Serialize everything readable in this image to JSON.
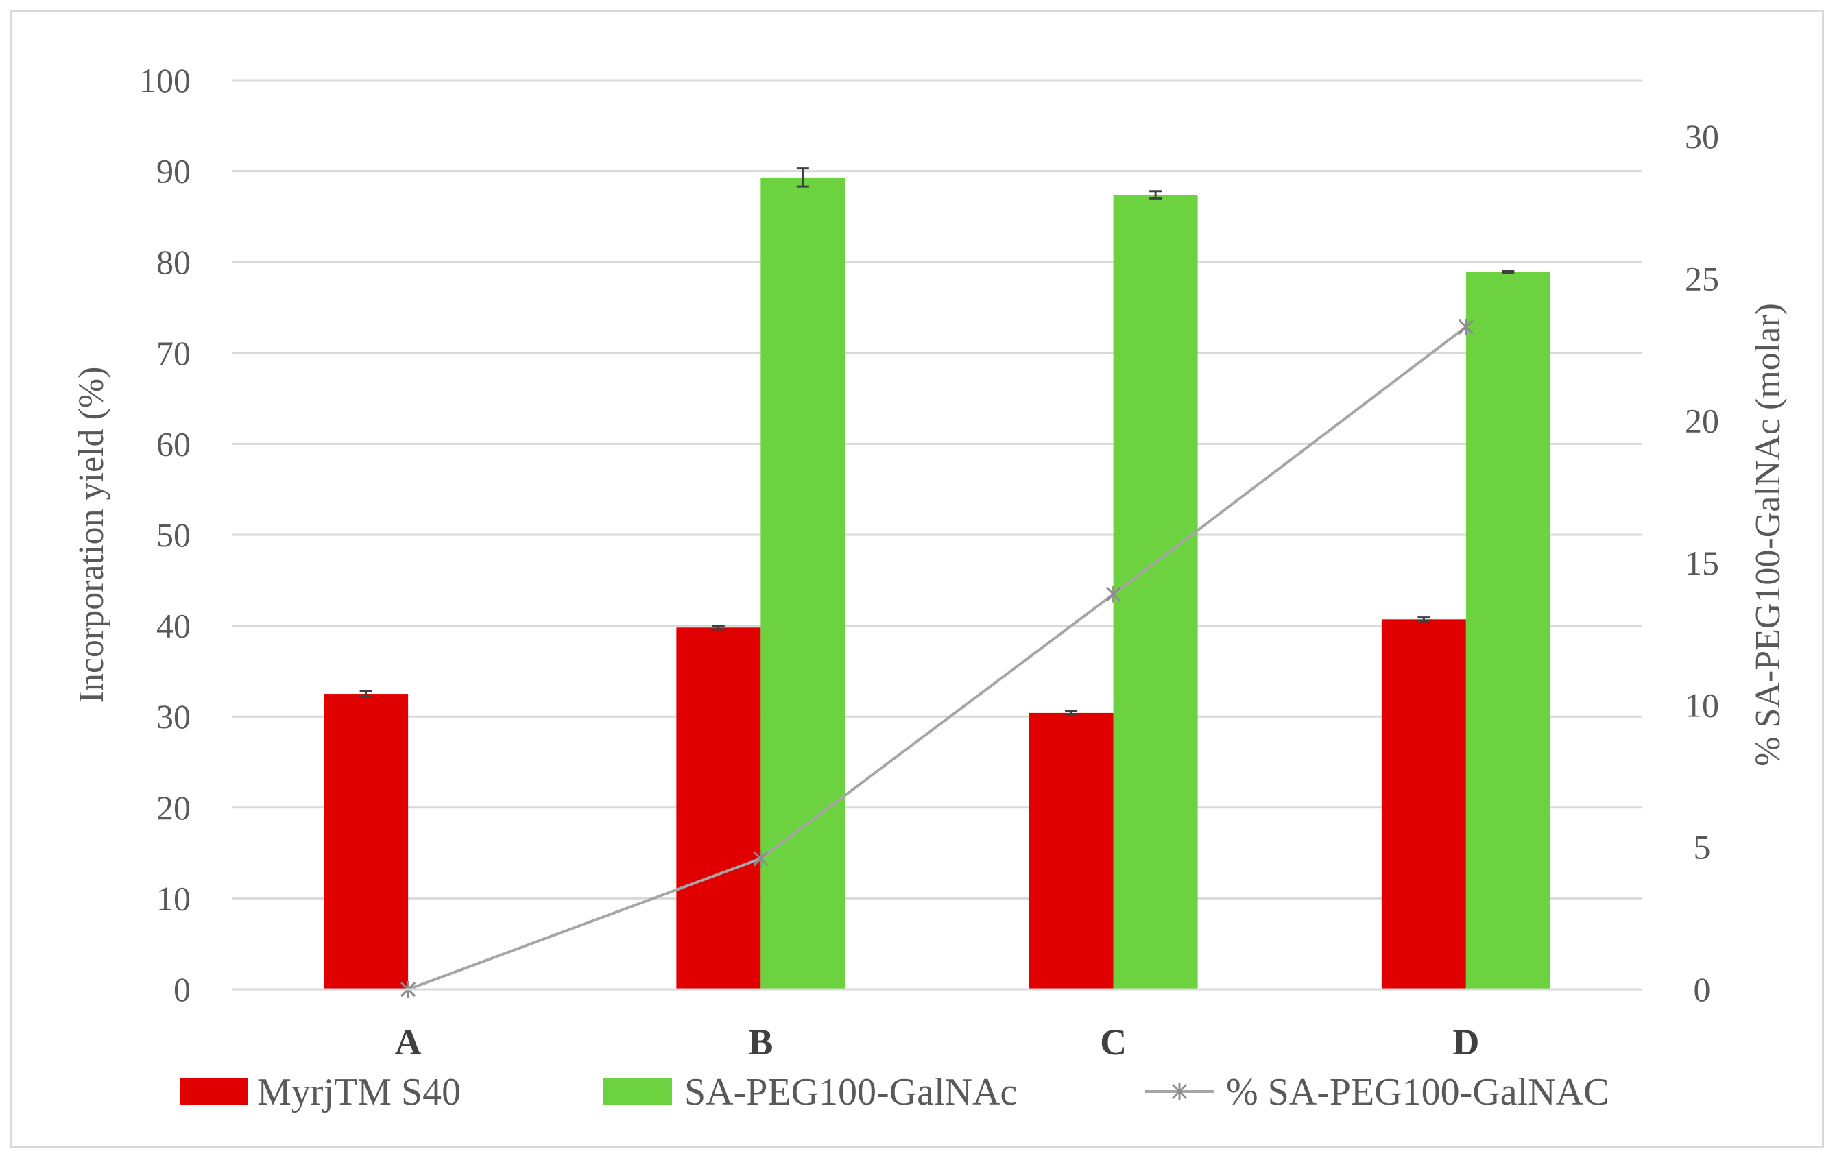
{
  "chart_data": {
    "type": "bar",
    "categories": [
      "A",
      "B",
      "C",
      "D"
    ],
    "series": [
      {
        "name": "MyrjTM S40",
        "kind": "bar",
        "axis": "left",
        "color": "#e00000",
        "values": [
          32.5,
          39.8,
          30.4,
          40.7
        ],
        "errors": [
          0.3,
          0.2,
          0.2,
          0.2
        ]
      },
      {
        "name": "SA-PEG100-GalNAc",
        "kind": "bar",
        "axis": "left",
        "color": "#6cd23f",
        "values": [
          null,
          89.3,
          87.4,
          78.9
        ],
        "errors": [
          null,
          1.0,
          0.4,
          0.1
        ]
      },
      {
        "name": "% SA-PEG100-GalNAC",
        "kind": "line",
        "axis": "right",
        "color": "#a6a6a6",
        "values": [
          0,
          4.6,
          13.9,
          23.3
        ]
      }
    ],
    "ylabel": "Incorporation yield (%)",
    "ylim": [
      0,
      100
    ],
    "yticks": [
      "0",
      "10",
      "20",
      "30",
      "40",
      "50",
      "60",
      "70",
      "80",
      "90",
      "100"
    ],
    "y2label": "% SA-PEG100-GalNAc  (molar)",
    "y2lim": [
      0,
      32
    ],
    "y2ticks": [
      "0",
      "5",
      "10",
      "15",
      "20",
      "25",
      "30"
    ],
    "grid": true,
    "legend_position": "bottom"
  }
}
